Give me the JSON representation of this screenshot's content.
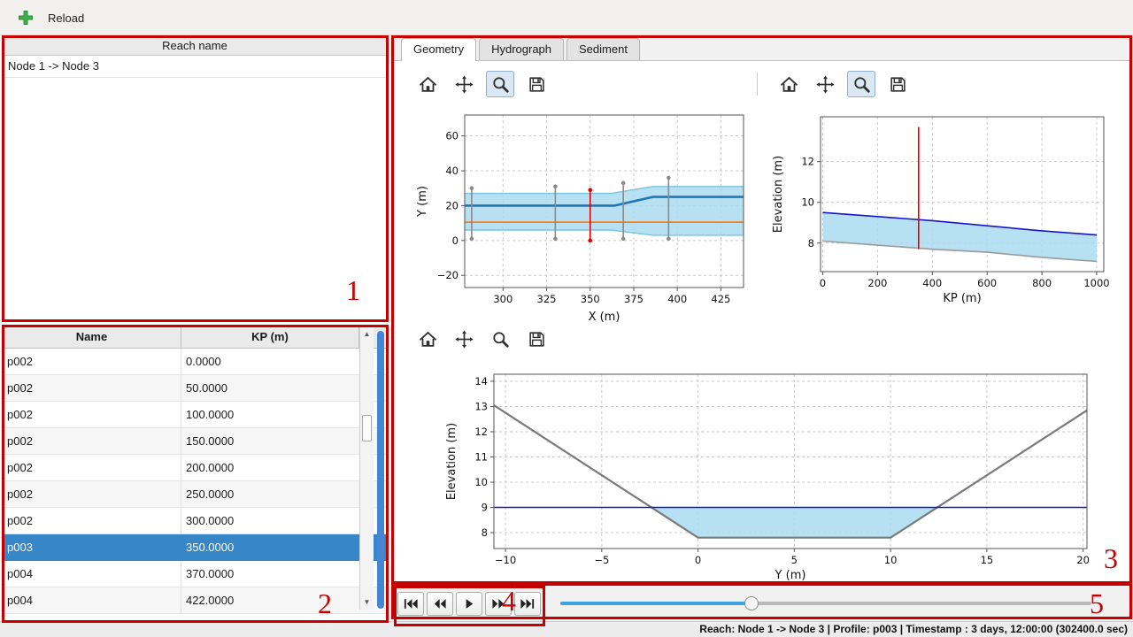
{
  "topbar": {
    "reload_label": "Reload"
  },
  "reach_panel": {
    "header": "Reach name",
    "items": [
      "Node 1 -> Node 3"
    ]
  },
  "profile_table": {
    "columns": [
      "Name",
      "KP (m)"
    ],
    "rows": [
      {
        "name": "p002",
        "kp": "0.0000",
        "selected": false
      },
      {
        "name": "p002",
        "kp": "50.0000",
        "selected": false
      },
      {
        "name": "p002",
        "kp": "100.0000",
        "selected": false
      },
      {
        "name": "p002",
        "kp": "150.0000",
        "selected": false
      },
      {
        "name": "p002",
        "kp": "200.0000",
        "selected": false
      },
      {
        "name": "p002",
        "kp": "250.0000",
        "selected": false
      },
      {
        "name": "p002",
        "kp": "300.0000",
        "selected": false
      },
      {
        "name": "p003",
        "kp": "350.0000",
        "selected": true
      },
      {
        "name": "p004",
        "kp": "370.0000",
        "selected": false
      },
      {
        "name": "p004",
        "kp": "422.0000",
        "selected": false
      }
    ]
  },
  "tabs": [
    {
      "label": "Geometry",
      "active": true
    },
    {
      "label": "Hydrograph",
      "active": false
    },
    {
      "label": "Sediment",
      "active": false
    }
  ],
  "plot_toolbars": [
    {
      "icons": [
        "home",
        "pan",
        "zoom",
        "save"
      ],
      "active": "zoom"
    },
    {
      "icons": [
        "home",
        "pan",
        "zoom",
        "save"
      ],
      "active": "zoom"
    },
    {
      "icons": [
        "home",
        "pan",
        "zoom",
        "save"
      ],
      "active": null
    }
  ],
  "playback": {
    "buttons": [
      "skip-start",
      "rewind",
      "play",
      "fast-forward",
      "skip-end"
    ]
  },
  "slider": {
    "value_pct": 36
  },
  "statusbar": {
    "text": "Reach: Node 1 -> Node 3 | Profile: p003 | Timestamp : 3 days, 12:00:00 (302400.0 sec)"
  },
  "annotations": {
    "labels": [
      "1",
      "2",
      "3",
      "4",
      "5"
    ]
  },
  "colors": {
    "selection": "#3787c8",
    "annotation": "#c40000",
    "water_fill": "#aadcf0",
    "centerline": "#1f77b4",
    "reference": "#ff7f0e",
    "marker": "#e00000",
    "slider_fill": "#3ca3e0"
  },
  "chart_data": [
    {
      "type": "line",
      "title": "Plan view",
      "xlabel": "X (m)",
      "ylabel": "Y (m)",
      "xlim": [
        278,
        438
      ],
      "ylim": [
        -27,
        72
      ],
      "xticks": [
        300,
        325,
        350,
        375,
        400,
        425
      ],
      "yticks": [
        -20,
        0,
        20,
        40,
        60
      ],
      "grid": true,
      "legend": null,
      "fills": [
        {
          "name": "channel-band",
          "color": "#aadcf0",
          "opacity": 0.85,
          "points": [
            [
              278,
              27
            ],
            [
              362,
              27
            ],
            [
              386,
              31
            ],
            [
              438,
              31
            ],
            [
              438,
              3
            ],
            [
              386,
              3
            ],
            [
              362,
              6
            ],
            [
              278,
              6
            ]
          ]
        }
      ],
      "lines": [
        {
          "name": "band-top-edge",
          "color": "#7ac4e0",
          "width": 1.4,
          "points": [
            [
              278,
              27
            ],
            [
              362,
              27
            ],
            [
              386,
              31
            ],
            [
              438,
              31
            ]
          ]
        },
        {
          "name": "band-bottom-edge",
          "color": "#7ac4e0",
          "width": 1.4,
          "points": [
            [
              278,
              6
            ],
            [
              362,
              6
            ],
            [
              386,
              3
            ],
            [
              438,
              3
            ]
          ]
        },
        {
          "name": "centerline",
          "color": "#1f77b4",
          "width": 2.6,
          "points": [
            [
              278,
              20
            ],
            [
              364,
              20
            ],
            [
              386,
              25
            ],
            [
              438,
              25
            ]
          ]
        },
        {
          "name": "reference-line",
          "color": "#ff7f0e",
          "width": 1.8,
          "points": [
            [
              278,
              10.5
            ],
            [
              438,
              10.5
            ]
          ]
        }
      ],
      "vlines": [
        {
          "x": 282,
          "y1": 1,
          "y2": 30,
          "color": "#8a8a8a",
          "dots": true
        },
        {
          "x": 330,
          "y1": 1,
          "y2": 31,
          "color": "#8a8a8a",
          "dots": true
        },
        {
          "x": 350,
          "y1": 0,
          "y2": 29,
          "color": "#e00000",
          "dots": true
        },
        {
          "x": 369,
          "y1": 1,
          "y2": 33,
          "color": "#8a8a8a",
          "dots": true
        },
        {
          "x": 395,
          "y1": 1,
          "y2": 36,
          "color": "#8a8a8a",
          "dots": true
        }
      ]
    },
    {
      "type": "line",
      "title": "Longitudinal profile",
      "xlabel": "KP (m)",
      "ylabel": "Elevation (m)",
      "xlim": [
        -8,
        1026
      ],
      "ylim": [
        6.6,
        14.2
      ],
      "xticks": [
        0,
        200,
        400,
        600,
        800,
        1000
      ],
      "yticks": [
        8,
        10,
        12
      ],
      "grid": true,
      "legend": null,
      "fills": [
        {
          "name": "water-area",
          "color": "#aadcf0",
          "opacity": 0.85,
          "points": [
            [
              0,
              9.5
            ],
            [
              200,
              9.3
            ],
            [
              400,
              9.1
            ],
            [
              600,
              8.85
            ],
            [
              800,
              8.6
            ],
            [
              1000,
              8.4
            ],
            [
              1000,
              7.1
            ],
            [
              800,
              7.3
            ],
            [
              600,
              7.55
            ],
            [
              400,
              7.7
            ],
            [
              200,
              7.9
            ],
            [
              0,
              8.1
            ]
          ]
        }
      ],
      "lines": [
        {
          "name": "water-level",
          "color": "#1515c8",
          "width": 1.6,
          "points": [
            [
              0,
              9.5
            ],
            [
              200,
              9.3
            ],
            [
              400,
              9.1
            ],
            [
              600,
              8.85
            ],
            [
              800,
              8.6
            ],
            [
              1000,
              8.4
            ]
          ]
        },
        {
          "name": "bed-level",
          "color": "#9a9a9a",
          "width": 1.6,
          "points": [
            [
              0,
              8.1
            ],
            [
              200,
              7.9
            ],
            [
              400,
              7.7
            ],
            [
              600,
              7.55
            ],
            [
              800,
              7.3
            ],
            [
              1000,
              7.1
            ]
          ]
        }
      ],
      "vlines": [
        {
          "x": 350,
          "y1": 7.7,
          "y2": 13.7,
          "color": "#e00000",
          "dots": false
        }
      ]
    },
    {
      "type": "line",
      "title": "Cross section",
      "xlabel": "Y (m)",
      "ylabel": "Elevation (m)",
      "xlim": [
        -10.6,
        20.2
      ],
      "ylim": [
        7.37,
        14.28
      ],
      "xticks": [
        -10,
        -5,
        0,
        5,
        10,
        15,
        20
      ],
      "yticks": [
        8,
        9,
        10,
        11,
        12,
        13,
        14
      ],
      "grid": true,
      "legend": null,
      "fills": [
        {
          "name": "water-area",
          "color": "#aadcf0",
          "opacity": 0.85,
          "points": [
            [
              -2.42,
              9
            ],
            [
              12.42,
              9
            ],
            [
              10,
              7.8
            ],
            [
              0,
              7.8
            ]
          ]
        }
      ],
      "lines": [
        {
          "name": "bed-profile",
          "color": "#7a7a7a",
          "width": 2.2,
          "points": [
            [
              -10.6,
              13.05
            ],
            [
              0,
              7.8
            ],
            [
              10,
              7.8
            ],
            [
              20.2,
              12.85
            ]
          ]
        },
        {
          "name": "water-level",
          "color": "#1515c8",
          "width": 1.5,
          "points": [
            [
              -10.6,
              9
            ],
            [
              20.2,
              9
            ]
          ]
        }
      ],
      "vlines": []
    }
  ]
}
